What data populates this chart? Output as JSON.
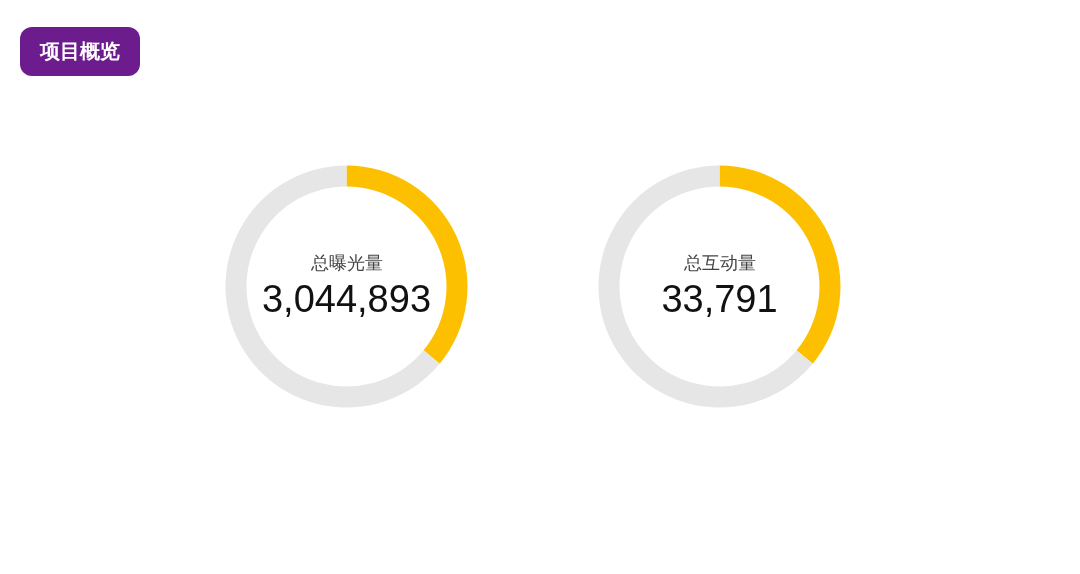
{
  "chart_data": [
    {
      "type": "donut",
      "title": "总曝光量",
      "subtitle": "3,044,893",
      "annotations": [
        "项目概览"
      ],
      "categories": [
        null,
        null
      ],
      "values": [
        36,
        64
      ],
      "colors": [
        "#fcc000",
        "#e6e6e6"
      ]
    },
    {
      "type": "donut",
      "title": "总互动量",
      "subtitle": "33,791",
      "categories": [
        null,
        null
      ],
      "values": [
        36,
        64
      ],
      "colors": [
        "#fcc000",
        "#e6e6e6"
      ]
    }
  ]
}
